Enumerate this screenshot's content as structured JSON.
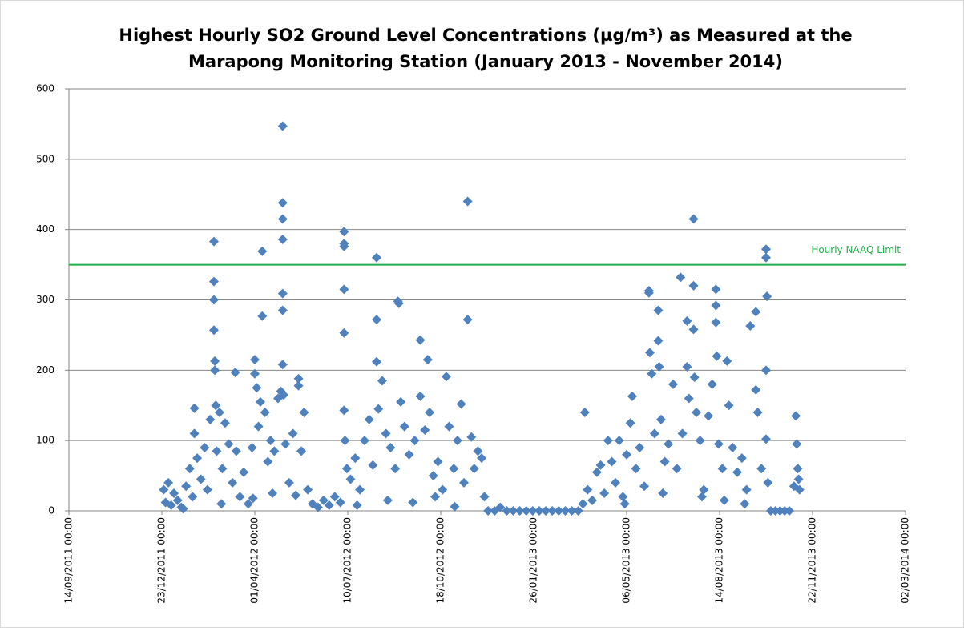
{
  "chart_data": {
    "type": "scatter",
    "title": [
      "Highest Hourly SO2 Ground Level Concentrations (µg/m³) as Measured at the",
      "Marapong Monitoring Station (January 2013 - November 2014)"
    ],
    "color": "#4f81bd",
    "grid": true,
    "ylim": [
      0,
      600
    ],
    "yticks": [
      0,
      100,
      200,
      300,
      400,
      500,
      600
    ],
    "xlim": [
      "2011-09-14",
      "2014-03-02"
    ],
    "xticks": [
      {
        "value": "2011-09-14",
        "label": "14/09/2011 00:00"
      },
      {
        "value": "2011-12-23",
        "label": "23/12/2011 00:00"
      },
      {
        "value": "2012-04-01",
        "label": "01/04/2012 00:00"
      },
      {
        "value": "2012-07-10",
        "label": "10/07/2012 00:00"
      },
      {
        "value": "2012-10-18",
        "label": "18/10/2012 00:00"
      },
      {
        "value": "2013-01-26",
        "label": "26/01/2013 00:00"
      },
      {
        "value": "2013-05-06",
        "label": "06/05/2013 00:00"
      },
      {
        "value": "2013-08-14",
        "label": "14/08/2013 00:00"
      },
      {
        "value": "2013-11-22",
        "label": "22/11/2013 00:00"
      },
      {
        "value": "2014-03-02",
        "label": "02/03/2014 00:00"
      }
    ],
    "annotations": [
      {
        "text": "Hourly NAAQ Limit",
        "y": 350,
        "color": "#22b04c"
      }
    ],
    "x": [
      "2011-12-25",
      "2011-12-27",
      "2011-12-30",
      "2012-01-02",
      "2012-01-05",
      "2012-01-09",
      "2012-01-13",
      "2012-01-18",
      "2012-01-22",
      "2012-01-25",
      "2012-01-27",
      "2012-01-27",
      "2012-01-30",
      "2012-02-03",
      "2012-02-07",
      "2012-02-10",
      "2012-02-13",
      "2012-02-17",
      "2012-02-17",
      "2012-02-17",
      "2012-02-17",
      "2012-02-18",
      "2012-02-18",
      "2012-02-19",
      "2012-02-20",
      "2012-02-23",
      "2012-02-26",
      "2012-02-29",
      "2012-03-04",
      "2012-03-08",
      "2012-03-11",
      "2012-03-12",
      "2012-03-16",
      "2012-03-20",
      "2012-03-25",
      "2012-03-29",
      "2012-04-01",
      "2012-04-01",
      "2012-04-03",
      "2012-04-05",
      "2012-04-07",
      "2012-04-09",
      "2012-04-09",
      "2012-04-12",
      "2012-04-15",
      "2012-04-18",
      "2012-04-22",
      "2012-04-26",
      "2012-04-29",
      "2012-05-01",
      "2012-05-01",
      "2012-05-01",
      "2012-05-01",
      "2012-05-01",
      "2012-05-01",
      "2012-05-01",
      "2012-05-02",
      "2012-05-04",
      "2012-05-08",
      "2012-05-12",
      "2012-05-18",
      "2012-05-18",
      "2012-05-21",
      "2012-05-24",
      "2012-05-28",
      "2012-06-02",
      "2012-06-08",
      "2012-06-14",
      "2012-06-20",
      "2012-06-26",
      "2012-07-02",
      "2012-07-06",
      "2012-07-06",
      "2012-07-06",
      "2012-07-06",
      "2012-07-06",
      "2012-07-06",
      "2012-07-07",
      "2012-07-09",
      "2012-07-13",
      "2012-07-18",
      "2012-07-23",
      "2012-07-28",
      "2012-08-02",
      "2012-08-06",
      "2012-08-10",
      "2012-08-10",
      "2012-08-10",
      "2012-08-12",
      "2012-08-16",
      "2012-08-20",
      "2012-08-25",
      "2012-08-30",
      "2012-09-02",
      "2012-09-03",
      "2012-09-05",
      "2012-09-09",
      "2012-09-14",
      "2012-09-20",
      "2012-09-26",
      "2012-09-26",
      "2012-10-01",
      "2012-10-04",
      "2012-10-06",
      "2012-10-10",
      "2012-10-15",
      "2012-10-20",
      "2012-10-24",
      "2012-10-27",
      "2012-11-01",
      "2012-11-05",
      "2012-11-09",
      "2012-11-12",
      "2012-11-16",
      "2012-11-16",
      "2012-11-20",
      "2012-11-23",
      "2012-11-27",
      "2012-12-01",
      "2012-12-04",
      "2012-01-15",
      "2012-02-25",
      "2012-03-30",
      "2012-04-20",
      "2012-05-15",
      "2012-07-20",
      "2012-08-22",
      "2012-09-18",
      "2012-10-12",
      "2012-11-02",
      "2012-12-08",
      "2012-12-15",
      "2012-12-21",
      "2012-12-28",
      "2013-01-04",
      "2013-01-11",
      "2013-01-18",
      "2013-01-25",
      "2013-02-01",
      "2013-02-08",
      "2013-02-15",
      "2013-02-22",
      "2013-03-01",
      "2013-03-08",
      "2013-03-15",
      "2013-03-20",
      "2013-03-22",
      "2013-03-25",
      "2013-03-30",
      "2013-04-04",
      "2013-04-08",
      "2013-04-12",
      "2013-04-16",
      "2013-04-20",
      "2013-04-24",
      "2013-04-28",
      "2013-05-02",
      "2013-05-06",
      "2013-05-10",
      "2013-05-12",
      "2013-05-16",
      "2013-05-20",
      "2013-05-25",
      "2013-05-30",
      "2013-05-30",
      "2013-05-31",
      "2013-06-02",
      "2013-06-05",
      "2013-06-09",
      "2013-06-09",
      "2013-06-10",
      "2013-06-12",
      "2013-06-16",
      "2013-06-20",
      "2013-06-25",
      "2013-06-29",
      "2013-07-03",
      "2013-07-05",
      "2013-07-10",
      "2013-07-10",
      "2013-07-12",
      "2013-07-17",
      "2013-07-17",
      "2013-07-17",
      "2013-07-18",
      "2013-07-20",
      "2013-07-24",
      "2013-07-28",
      "2013-08-02",
      "2013-08-06",
      "2013-08-10",
      "2013-08-10",
      "2013-08-10",
      "2013-08-11",
      "2013-08-13",
      "2013-08-17",
      "2013-08-22",
      "2013-08-24",
      "2013-08-28",
      "2013-09-02",
      "2013-09-07",
      "2013-09-12",
      "2013-09-16",
      "2013-09-22",
      "2013-09-22",
      "2013-09-24",
      "2013-09-28",
      "2013-10-03",
      "2013-10-03",
      "2013-10-04",
      "2013-10-03",
      "2013-10-03",
      "2013-10-05",
      "2013-10-08",
      "2013-10-13",
      "2013-10-18",
      "2013-10-23",
      "2013-10-28",
      "2013-11-02",
      "2013-11-04",
      "2013-11-05",
      "2013-11-06",
      "2013-11-07",
      "2013-11-08",
      "2013-05-04",
      "2013-06-14",
      "2013-07-26",
      "2013-08-19",
      "2013-09-10"
    ],
    "values": [
      30,
      12,
      40,
      8,
      25,
      15,
      5,
      35,
      60,
      20,
      146,
      110,
      75,
      45,
      90,
      30,
      130,
      383,
      326,
      300,
      257,
      213,
      200,
      150,
      85,
      140,
      60,
      125,
      95,
      40,
      197,
      85,
      20,
      55,
      10,
      90,
      215,
      195,
      175,
      120,
      155,
      369,
      277,
      140,
      70,
      100,
      85,
      160,
      170,
      547,
      438,
      415,
      386,
      309,
      285,
      208,
      165,
      95,
      40,
      110,
      188,
      178,
      85,
      140,
      30,
      10,
      5,
      15,
      8,
      20,
      12,
      397,
      380,
      376,
      315,
      253,
      143,
      100,
      60,
      45,
      75,
      30,
      100,
      130,
      65,
      360,
      272,
      212,
      145,
      185,
      110,
      90,
      60,
      298,
      295,
      155,
      120,
      80,
      100,
      243,
      163,
      115,
      215,
      140,
      50,
      70,
      30,
      191,
      120,
      60,
      100,
      152,
      40,
      440,
      272,
      105,
      60,
      85,
      75,
      20,
      3,
      10,
      18,
      25,
      22,
      8,
      15,
      12,
      20,
      6,
      0,
      0,
      5,
      0,
      0,
      0,
      0,
      0,
      0,
      0,
      0,
      0,
      0,
      0,
      0,
      10,
      140,
      30,
      15,
      55,
      65,
      25,
      100,
      70,
      40,
      100,
      20,
      80,
      125,
      163,
      60,
      90,
      35,
      313,
      310,
      225,
      195,
      110,
      285,
      242,
      205,
      130,
      70,
      95,
      180,
      60,
      332,
      110,
      270,
      205,
      160,
      415,
      320,
      258,
      190,
      140,
      100,
      30,
      135,
      180,
      315,
      292,
      268,
      220,
      95,
      60,
      213,
      150,
      90,
      55,
      75,
      30,
      263,
      283,
      172,
      140,
      60,
      372,
      360,
      305,
      200,
      102,
      40,
      0,
      0,
      0,
      0,
      0,
      35,
      135,
      95,
      60,
      45,
      30,
      10,
      25,
      20,
      15,
      10
    ]
  }
}
